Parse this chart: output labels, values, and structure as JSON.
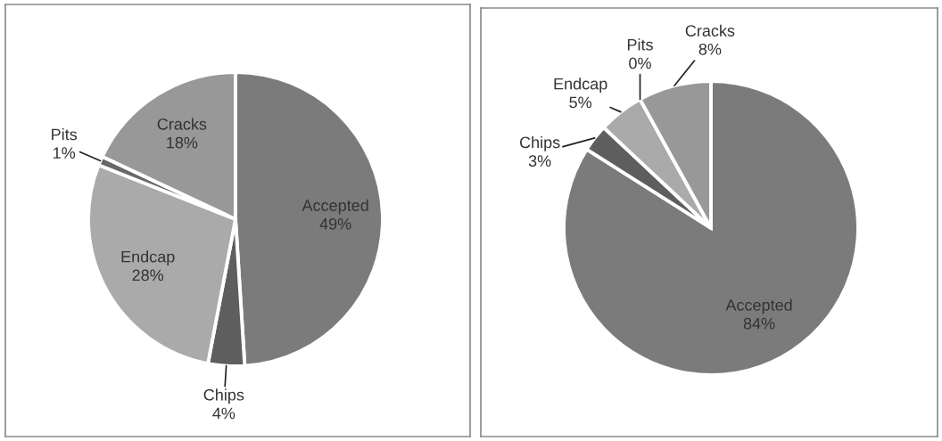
{
  "chart_data": [
    {
      "type": "pie",
      "categories": [
        "Accepted",
        "Chips",
        "Endcap",
        "Pits",
        "Cracks"
      ],
      "values": [
        49,
        4,
        28,
        1,
        18
      ],
      "value_labels": [
        "49%",
        "4%",
        "28%",
        "1%",
        "18%"
      ],
      "colors": [
        "#7b7b7b",
        "#5e5e5e",
        "#aaaaaa",
        "#686868",
        "#989898"
      ]
    },
    {
      "type": "pie",
      "categories": [
        "Accepted",
        "Chips",
        "Endcap",
        "Pits",
        "Cracks"
      ],
      "values": [
        84,
        3,
        5,
        0,
        8
      ],
      "value_labels": [
        "84%",
        "3%",
        "5%",
        "0%",
        "8%"
      ],
      "colors": [
        "#7b7b7b",
        "#5e5e5e",
        "#aaaaaa",
        "#686868",
        "#989898"
      ]
    }
  ]
}
